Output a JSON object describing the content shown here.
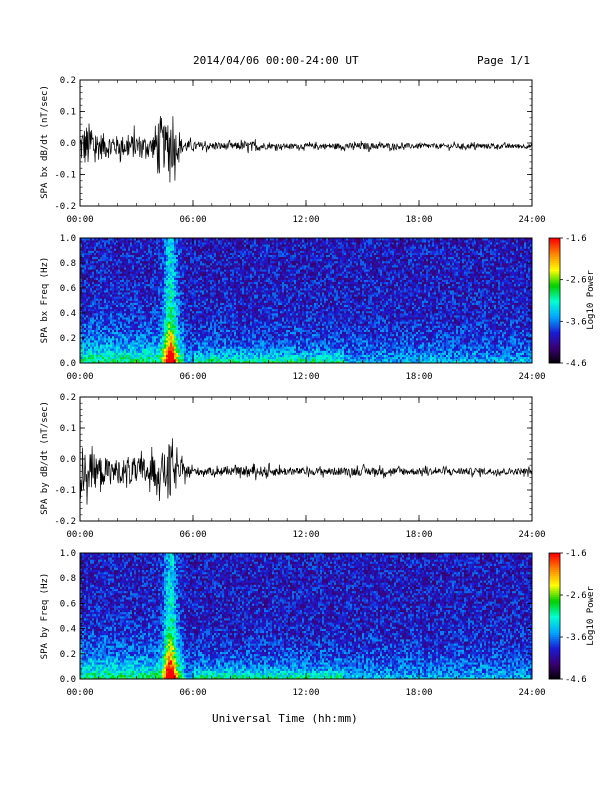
{
  "header": {
    "title": "2014/04/06  00:00-24:00 UT",
    "page": "Page 1/1"
  },
  "footer": {
    "xlabel": "Universal Time (hh:mm)"
  },
  "colors": {
    "trace": "#000000",
    "colormap": [
      "#000000",
      "#3a0070",
      "#1b1bd6",
      "#00a6ff",
      "#00ffd0",
      "#00d000",
      "#ffff00",
      "#ff8a00",
      "#ff0000"
    ]
  },
  "chart_data": [
    {
      "type": "line",
      "ylabel": "SPA bx dB/dt (nT/sec)",
      "xlim": [
        "00:00",
        "24:00"
      ],
      "xticks": [
        "00:00",
        "06:00",
        "12:00",
        "18:00",
        "24:00"
      ],
      "ylim": [
        -0.2,
        0.2
      ],
      "yticks": [
        "-0.2",
        "-0.1",
        "0.0",
        "0.1",
        "0.2"
      ],
      "envelope": {
        "x_hours": [
          0,
          0.5,
          1.0,
          2.0,
          3.0,
          3.8,
          4.2,
          4.5,
          4.8,
          5.3,
          6.0,
          8.0,
          9.5,
          10.0,
          12.0,
          15.0,
          18.0,
          21.0,
          24.0
        ],
        "amplitude": [
          0.1,
          0.14,
          0.08,
          0.06,
          0.07,
          0.05,
          0.2,
          0.12,
          0.17,
          0.05,
          0.025,
          0.02,
          0.03,
          0.015,
          0.015,
          0.02,
          0.015,
          0.015,
          0.013
        ]
      },
      "offset": -0.01
    },
    {
      "type": "heatmap",
      "ylabel": "SPA bx Freq (Hz)",
      "xlim": [
        "00:00",
        "24:00"
      ],
      "xticks": [
        "00:00",
        "06:00",
        "12:00",
        "18:00",
        "24:00"
      ],
      "ylim": [
        0.0,
        1.0
      ],
      "yticks": [
        "0.0",
        "0.2",
        "0.4",
        "0.6",
        "0.8",
        "1.0"
      ],
      "colorbar": {
        "label": "Log10 Power",
        "min": -4.6,
        "max": -1.6,
        "ticks": [
          "-1.6",
          "-2.6",
          "-3.6",
          "-4.6"
        ]
      }
    },
    {
      "type": "line",
      "ylabel": "SPA by dB/dt (nT/sec)",
      "xlim": [
        "00:00",
        "24:00"
      ],
      "xticks": [
        "00:00",
        "06:00",
        "12:00",
        "18:00",
        "24:00"
      ],
      "ylim": [
        -0.2,
        0.2
      ],
      "yticks": [
        "-0.2",
        "-0.1",
        "0.0",
        "0.1",
        "0.2"
      ],
      "envelope": {
        "x_hours": [
          0,
          0.3,
          1.0,
          2.0,
          3.0,
          4.0,
          4.5,
          4.9,
          5.2,
          6.0,
          8.0,
          9.5,
          12.0,
          15.0,
          18.0,
          21.0,
          24.0
        ],
        "amplitude": [
          0.16,
          0.12,
          0.09,
          0.07,
          0.08,
          0.09,
          0.12,
          0.2,
          0.06,
          0.025,
          0.02,
          0.03,
          0.02,
          0.025,
          0.02,
          0.02,
          0.018
        ]
      },
      "offset": -0.04
    },
    {
      "type": "heatmap",
      "ylabel": "SPA by Freq (Hz)",
      "xlim": [
        "00:00",
        "24:00"
      ],
      "xticks": [
        "00:00",
        "06:00",
        "12:00",
        "18:00",
        "24:00"
      ],
      "ylim": [
        0.0,
        1.0
      ],
      "yticks": [
        "0.0",
        "0.2",
        "0.4",
        "0.6",
        "0.8",
        "1.0"
      ],
      "colorbar": {
        "label": "Log10 Power",
        "min": -4.6,
        "max": -1.6,
        "ticks": [
          "-1.6",
          "-2.6",
          "-3.6",
          "-4.6"
        ]
      }
    }
  ]
}
